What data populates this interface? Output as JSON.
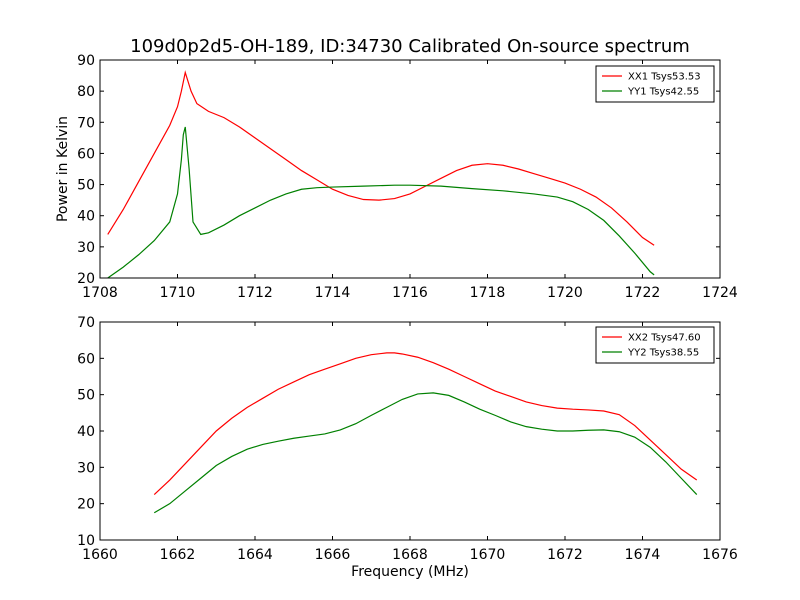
{
  "title": "109d0p2d5-OH-189, ID:34730 Calibrated On-source spectrum",
  "chart_data": [
    {
      "type": "line",
      "xlabel": "",
      "ylabel": "Power in Kelvin",
      "xlim": [
        1708,
        1724
      ],
      "ylim": [
        20,
        90
      ],
      "xticks": [
        "1708",
        "1710",
        "1712",
        "1714",
        "1716",
        "1718",
        "1720",
        "1722",
        "1724"
      ],
      "yticks": [
        "20",
        "30",
        "40",
        "50",
        "60",
        "70",
        "80",
        "90"
      ],
      "legend_position": "top-right",
      "series": [
        {
          "name": "XX1 Tsys53.53",
          "color": "#ff0000",
          "x": [
            1708.2,
            1708.6,
            1709.0,
            1709.4,
            1709.8,
            1710.0,
            1710.1,
            1710.2,
            1710.35,
            1710.5,
            1710.8,
            1711.2,
            1711.6,
            1712.0,
            1712.4,
            1712.8,
            1713.2,
            1713.6,
            1714.0,
            1714.4,
            1714.8,
            1715.2,
            1715.6,
            1716.0,
            1716.4,
            1716.8,
            1717.2,
            1717.6,
            1718.0,
            1718.4,
            1718.8,
            1719.2,
            1719.6,
            1720.0,
            1720.4,
            1720.8,
            1721.2,
            1721.6,
            1722.0,
            1722.3
          ],
          "y": [
            34,
            42,
            51,
            60,
            69,
            75,
            80,
            86,
            80,
            76,
            73.5,
            71.5,
            68.5,
            65,
            61.5,
            58,
            54.5,
            51.5,
            48.5,
            46.5,
            45.2,
            45,
            45.5,
            47,
            49.5,
            52,
            54.5,
            56.2,
            56.7,
            56.2,
            55,
            53.5,
            52,
            50.5,
            48.5,
            46,
            42.5,
            38,
            33,
            30.5
          ]
        },
        {
          "name": "YY1 Tsys42.55",
          "color": "#008000",
          "x": [
            1708.2,
            1708.6,
            1709.0,
            1709.4,
            1709.8,
            1710.0,
            1710.1,
            1710.15,
            1710.2,
            1710.3,
            1710.4,
            1710.6,
            1710.8,
            1711.2,
            1711.6,
            1712.0,
            1712.4,
            1712.8,
            1713.2,
            1713.6,
            1714.0,
            1714.8,
            1715.6,
            1716.0,
            1716.8,
            1717.6,
            1718.4,
            1719.2,
            1719.8,
            1720.2,
            1720.6,
            1721.0,
            1721.4,
            1721.8,
            1722.2,
            1722.3
          ],
          "y": [
            20,
            23.5,
            27.5,
            32,
            38,
            47,
            58,
            66,
            68.5,
            55,
            38,
            34,
            34.5,
            37,
            40,
            42.5,
            45,
            47,
            48.5,
            49,
            49.2,
            49.5,
            49.8,
            49.8,
            49.5,
            48.7,
            48,
            47,
            46,
            44.5,
            42,
            38.5,
            33.5,
            28,
            22,
            21
          ]
        }
      ]
    },
    {
      "type": "line",
      "xlabel": "Frequency (MHz)",
      "ylabel": "",
      "xlim": [
        1660,
        1676
      ],
      "ylim": [
        10,
        70
      ],
      "xticks": [
        "1660",
        "1662",
        "1664",
        "1666",
        "1668",
        "1670",
        "1672",
        "1674",
        "1676"
      ],
      "yticks": [
        "10",
        "20",
        "30",
        "40",
        "50",
        "60",
        "70"
      ],
      "legend_position": "top-right",
      "series": [
        {
          "name": "XX2 Tsys47.60",
          "color": "#ff0000",
          "x": [
            1661.4,
            1661.8,
            1662.2,
            1662.6,
            1663.0,
            1663.4,
            1663.8,
            1664.2,
            1664.6,
            1665.0,
            1665.4,
            1665.8,
            1666.2,
            1666.6,
            1667.0,
            1667.4,
            1667.6,
            1667.8,
            1668.2,
            1668.6,
            1669.0,
            1669.4,
            1669.8,
            1670.2,
            1670.6,
            1671.0,
            1671.4,
            1671.8,
            1672.2,
            1672.6,
            1673.0,
            1673.4,
            1673.8,
            1674.2,
            1674.6,
            1675.0,
            1675.4
          ],
          "y": [
            22.5,
            26.5,
            31,
            35.5,
            40,
            43.5,
            46.5,
            49,
            51.5,
            53.5,
            55.5,
            57,
            58.5,
            60,
            61,
            61.5,
            61.5,
            61.2,
            60.3,
            58.8,
            57,
            55,
            53,
            51,
            49.5,
            48,
            47,
            46.3,
            46,
            45.8,
            45.5,
            44.5,
            41.5,
            37.5,
            33.5,
            29.5,
            26.5
          ]
        },
        {
          "name": "YY2 Tsys38.55",
          "color": "#008000",
          "x": [
            1661.4,
            1661.8,
            1662.2,
            1662.6,
            1663.0,
            1663.4,
            1663.8,
            1664.2,
            1664.6,
            1665.0,
            1665.4,
            1665.8,
            1666.2,
            1666.6,
            1667.0,
            1667.4,
            1667.8,
            1668.2,
            1668.6,
            1669.0,
            1669.4,
            1669.8,
            1670.2,
            1670.6,
            1671.0,
            1671.4,
            1671.8,
            1672.2,
            1672.6,
            1673.0,
            1673.4,
            1673.8,
            1674.2,
            1674.6,
            1675.0,
            1675.4
          ],
          "y": [
            17.5,
            20,
            23.5,
            27,
            30.5,
            33,
            35,
            36.3,
            37.2,
            38,
            38.6,
            39.2,
            40.3,
            42,
            44.3,
            46.5,
            48.7,
            50.2,
            50.5,
            49.8,
            48,
            46,
            44.3,
            42.5,
            41.2,
            40.5,
            40,
            40,
            40.2,
            40.3,
            39.8,
            38.3,
            35.5,
            31.5,
            27,
            22.5
          ]
        }
      ]
    }
  ]
}
